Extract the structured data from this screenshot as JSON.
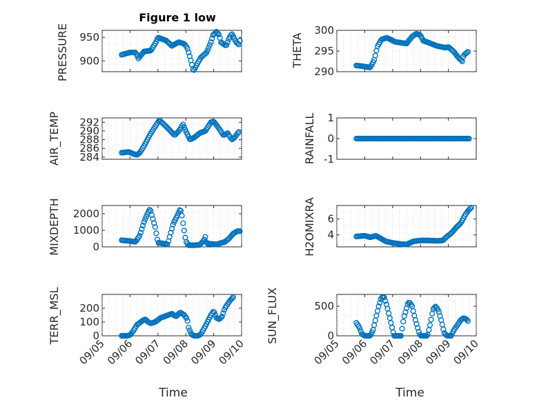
{
  "colors": {
    "marker": "#0072BD"
  },
  "title": "Figure 1 low",
  "x_axis": {
    "ticks": [
      0,
      1,
      2,
      3,
      4,
      5
    ],
    "tick_labels": [
      "09/05",
      "09/06",
      "09/07",
      "09/08",
      "09/09",
      "09/10"
    ],
    "label": "Time",
    "range": [
      0,
      5
    ]
  },
  "chart_data": [
    {
      "type": "scatter",
      "panel": "pressure",
      "ylabel": "PRESSURE",
      "ylim": [
        877,
        965
      ],
      "yticks": [
        900,
        950
      ],
      "ytick_labels": [
        "900",
        "950"
      ],
      "grid": true,
      "x_range": [
        0,
        5
      ],
      "keypoints": [
        [
          0.7,
          913
        ],
        [
          1.0,
          918
        ],
        [
          1.2,
          918
        ],
        [
          1.3,
          905
        ],
        [
          1.5,
          920
        ],
        [
          1.75,
          922
        ],
        [
          1.95,
          942
        ],
        [
          2.0,
          950
        ],
        [
          2.3,
          943
        ],
        [
          2.5,
          932
        ],
        [
          2.75,
          940
        ],
        [
          2.95,
          936
        ],
        [
          3.05,
          928
        ],
        [
          3.15,
          908
        ],
        [
          3.25,
          885
        ],
        [
          3.28,
          878
        ],
        [
          3.4,
          893
        ],
        [
          3.55,
          908
        ],
        [
          3.75,
          918
        ],
        [
          3.9,
          940
        ],
        [
          3.98,
          955
        ],
        [
          4.1,
          962
        ],
        [
          4.2,
          955
        ],
        [
          4.25,
          940
        ],
        [
          4.45,
          932
        ],
        [
          4.55,
          948
        ],
        [
          4.65,
          958
        ],
        [
          4.8,
          940
        ],
        [
          4.9,
          935
        ],
        [
          4.95,
          945
        ]
      ]
    },
    {
      "type": "scatter",
      "panel": "theta",
      "ylabel": "THETA",
      "ylim": [
        290,
        300
      ],
      "yticks": [
        290,
        295,
        300
      ],
      "ytick_labels": [
        "290",
        "295",
        "300"
      ],
      "grid": true,
      "x_range": [
        0,
        5
      ],
      "keypoints": [
        [
          0.7,
          291.5
        ],
        [
          0.95,
          291.3
        ],
        [
          1.2,
          291.0
        ],
        [
          1.35,
          293
        ],
        [
          1.45,
          296
        ],
        [
          1.6,
          297.8
        ],
        [
          1.8,
          298.2
        ],
        [
          2.1,
          297.2
        ],
        [
          2.5,
          296.8
        ],
        [
          2.7,
          298.5
        ],
        [
          2.85,
          299.2
        ],
        [
          3.0,
          298.8
        ],
        [
          3.1,
          297.5
        ],
        [
          3.3,
          297
        ],
        [
          3.6,
          296.2
        ],
        [
          3.9,
          295.8
        ],
        [
          4.0,
          296
        ],
        [
          4.2,
          294.8
        ],
        [
          4.35,
          293.5
        ],
        [
          4.5,
          292.5
        ],
        [
          4.55,
          294
        ],
        [
          4.7,
          294.8
        ]
      ]
    },
    {
      "type": "scatter",
      "panel": "air_temp",
      "ylabel": "AIR_TEMP",
      "ylim": [
        283.5,
        293
      ],
      "yticks": [
        284,
        286,
        288,
        290,
        292
      ],
      "ytick_labels": [
        "284",
        "286",
        "288",
        "290",
        "292"
      ],
      "grid": true,
      "x_range": [
        0,
        5
      ],
      "keypoints": [
        [
          0.7,
          285
        ],
        [
          0.95,
          285.2
        ],
        [
          1.1,
          284.8
        ],
        [
          1.25,
          284.5
        ],
        [
          1.35,
          285
        ],
        [
          1.5,
          286.5
        ],
        [
          1.7,
          289
        ],
        [
          1.9,
          291
        ],
        [
          2.05,
          292.5
        ],
        [
          2.3,
          291
        ],
        [
          2.6,
          289
        ],
        [
          2.75,
          290
        ],
        [
          2.9,
          291.5
        ],
        [
          3.0,
          290
        ],
        [
          3.15,
          288
        ],
        [
          3.3,
          288.5
        ],
        [
          3.5,
          289.5
        ],
        [
          3.7,
          290
        ],
        [
          3.9,
          292
        ],
        [
          4.0,
          292.2
        ],
        [
          4.2,
          290.5
        ],
        [
          4.35,
          289
        ],
        [
          4.5,
          289.5
        ],
        [
          4.65,
          288
        ],
        [
          4.75,
          288.5
        ],
        [
          4.9,
          289.8
        ]
      ]
    },
    {
      "type": "scatter",
      "panel": "rainfall",
      "ylabel": "RAINFALL",
      "ylim": [
        -1,
        1
      ],
      "yticks": [
        -1,
        0,
        1
      ],
      "ytick_labels": [
        "-1",
        "0",
        "1"
      ],
      "grid": false,
      "x_range": [
        0,
        5
      ],
      "keypoints": [
        [
          0.7,
          0
        ],
        [
          4.75,
          0
        ]
      ]
    },
    {
      "type": "scatter",
      "panel": "mixdepth",
      "ylabel": "MIXDEPTH",
      "ylim": [
        0,
        2500
      ],
      "yticks": [
        0,
        1000,
        2000
      ],
      "ytick_labels": [
        "0",
        "1000",
        "2000"
      ],
      "grid": true,
      "x_range": [
        0,
        5
      ],
      "keypoints": [
        [
          0.7,
          400
        ],
        [
          1.0,
          350
        ],
        [
          1.2,
          300
        ],
        [
          1.35,
          700
        ],
        [
          1.5,
          1500
        ],
        [
          1.65,
          2100
        ],
        [
          1.72,
          2300
        ],
        [
          1.8,
          1800
        ],
        [
          1.9,
          1200
        ],
        [
          2.0,
          250
        ],
        [
          2.2,
          200
        ],
        [
          2.35,
          150
        ],
        [
          2.45,
          800
        ],
        [
          2.55,
          1400
        ],
        [
          2.7,
          1900
        ],
        [
          2.8,
          2300
        ],
        [
          2.85,
          2000
        ],
        [
          2.92,
          1200
        ],
        [
          3.0,
          350
        ],
        [
          3.1,
          100
        ],
        [
          3.3,
          100
        ],
        [
          3.5,
          120
        ],
        [
          3.65,
          400
        ],
        [
          3.7,
          600
        ],
        [
          3.75,
          200
        ],
        [
          4.1,
          150
        ],
        [
          4.4,
          300
        ],
        [
          4.55,
          500
        ],
        [
          4.7,
          800
        ],
        [
          4.85,
          950
        ],
        [
          4.95,
          950
        ]
      ]
    },
    {
      "type": "scatter",
      "panel": "h2omixra",
      "ylabel": "H2OMIXRA",
      "ylim": [
        2.5,
        7.7
      ],
      "yticks": [
        4,
        6
      ],
      "ytick_labels": [
        "4",
        "6"
      ],
      "grid": true,
      "x_range": [
        0,
        5
      ],
      "keypoints": [
        [
          0.7,
          3.8
        ],
        [
          1.0,
          3.9
        ],
        [
          1.2,
          3.7
        ],
        [
          1.4,
          3.9
        ],
        [
          1.55,
          3.6
        ],
        [
          1.75,
          3.2
        ],
        [
          2.0,
          3.0
        ],
        [
          2.3,
          2.85
        ],
        [
          2.5,
          2.8
        ],
        [
          2.75,
          3.2
        ],
        [
          3.0,
          3.3
        ],
        [
          3.3,
          3.3
        ],
        [
          3.6,
          3.25
        ],
        [
          3.8,
          3.3
        ],
        [
          3.95,
          3.8
        ],
        [
          4.1,
          4.2
        ],
        [
          4.3,
          5.0
        ],
        [
          4.45,
          5.5
        ],
        [
          4.6,
          6.5
        ],
        [
          4.7,
          7.0
        ],
        [
          4.8,
          7.4
        ],
        [
          4.85,
          7.5
        ]
      ]
    },
    {
      "type": "scatter",
      "panel": "terr_msl",
      "ylabel": "TERR_MSL",
      "ylim": [
        0,
        300
      ],
      "yticks": [
        0,
        100,
        200
      ],
      "ytick_labels": [
        "0",
        "100",
        "200"
      ],
      "grid": true,
      "x_range": [
        0,
        5
      ],
      "keypoints": [
        [
          0.7,
          0
        ],
        [
          0.9,
          0
        ],
        [
          1.0,
          5
        ],
        [
          1.1,
          30
        ],
        [
          1.25,
          80
        ],
        [
          1.45,
          110
        ],
        [
          1.55,
          120
        ],
        [
          1.65,
          100
        ],
        [
          1.75,
          90
        ],
        [
          1.9,
          100
        ],
        [
          2.1,
          130
        ],
        [
          2.3,
          145
        ],
        [
          2.5,
          160
        ],
        [
          2.65,
          140
        ],
        [
          2.8,
          170
        ],
        [
          2.95,
          150
        ],
        [
          3.05,
          120
        ],
        [
          3.1,
          60
        ],
        [
          3.2,
          10
        ],
        [
          3.3,
          0
        ],
        [
          3.45,
          0
        ],
        [
          3.55,
          15
        ],
        [
          3.7,
          70
        ],
        [
          3.8,
          110
        ],
        [
          3.9,
          150
        ],
        [
          4.0,
          180
        ],
        [
          4.1,
          130
        ],
        [
          4.2,
          120
        ],
        [
          4.3,
          140
        ],
        [
          4.4,
          200
        ],
        [
          4.5,
          230
        ],
        [
          4.6,
          260
        ],
        [
          4.7,
          280
        ]
      ]
    },
    {
      "type": "scatter",
      "panel": "sun_flux",
      "ylabel": "SUN_FLUX",
      "ylim": [
        0,
        700
      ],
      "yticks": [
        0,
        500
      ],
      "ytick_labels": [
        "0",
        "500"
      ],
      "grid": true,
      "x_range": [
        0,
        5
      ],
      "keypoints": [
        [
          0.7,
          220
        ],
        [
          0.8,
          150
        ],
        [
          0.9,
          30
        ],
        [
          1.0,
          0
        ],
        [
          1.2,
          0
        ],
        [
          1.3,
          100
        ],
        [
          1.4,
          300
        ],
        [
          1.5,
          500
        ],
        [
          1.6,
          650
        ],
        [
          1.7,
          650
        ],
        [
          1.8,
          500
        ],
        [
          1.9,
          300
        ],
        [
          2.0,
          100
        ],
        [
          2.05,
          0
        ],
        [
          2.3,
          0
        ],
        [
          2.4,
          300
        ],
        [
          2.55,
          550
        ],
        [
          2.6,
          570
        ],
        [
          2.7,
          500
        ],
        [
          2.8,
          300
        ],
        [
          2.95,
          50
        ],
        [
          3.0,
          0
        ],
        [
          3.25,
          0
        ],
        [
          3.35,
          200
        ],
        [
          3.45,
          450
        ],
        [
          3.55,
          500
        ],
        [
          3.65,
          420
        ],
        [
          3.75,
          250
        ],
        [
          3.85,
          50
        ],
        [
          3.95,
          0
        ],
        [
          4.1,
          0
        ],
        [
          4.2,
          100
        ],
        [
          4.35,
          200
        ],
        [
          4.45,
          270
        ],
        [
          4.55,
          300
        ],
        [
          4.65,
          280
        ],
        [
          4.7,
          250
        ]
      ]
    }
  ]
}
